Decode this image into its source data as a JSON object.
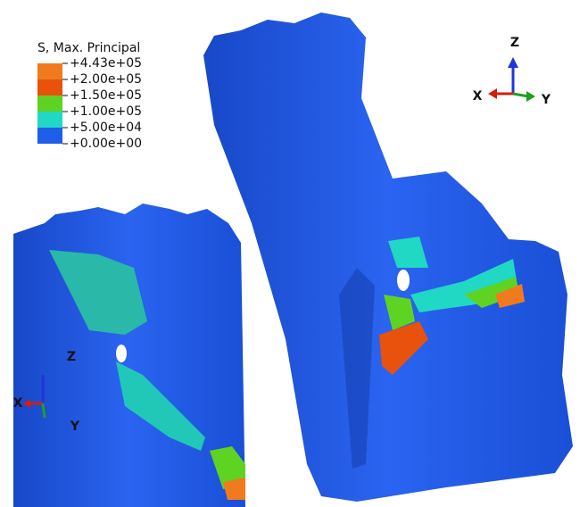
{
  "legend": {
    "title": "S, Max. Principal",
    "labels": [
      "+4.43e+05",
      "+2.00e+05",
      "+1.50e+05",
      "+1.00e+05",
      "+5.00e+04",
      "+0.00e+00"
    ],
    "colors": [
      "#f27a1e",
      "#e8520c",
      "#5fd321",
      "#21d8c4",
      "#1f5ee8"
    ]
  },
  "triads": [
    {
      "z": "Z",
      "x": "X",
      "y": "Y"
    },
    {
      "z": "Z",
      "x": "X",
      "y": "Y"
    }
  ]
}
